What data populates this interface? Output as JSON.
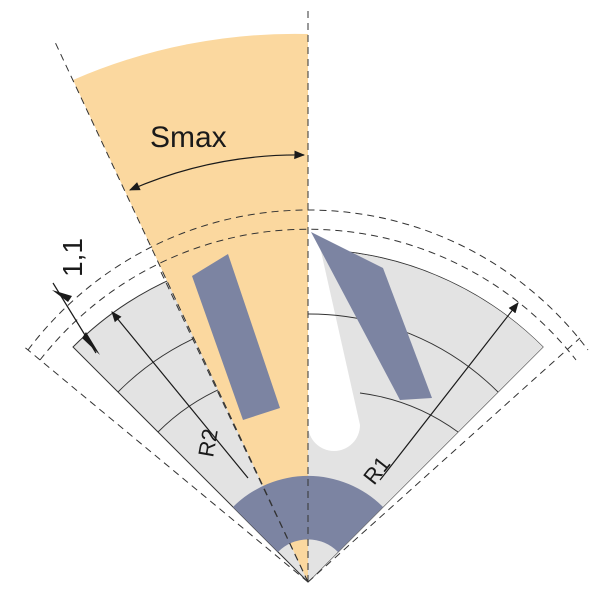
{
  "labels": {
    "smax": "Smax",
    "clearance": "1,1",
    "r1": "R1",
    "r2": "R2"
  },
  "colors": {
    "sector_fill": "#e3e3e3",
    "slot_fill": "#fbd89f",
    "hub_fill": "#7c84a2",
    "jaw_fill": "#7c84a2",
    "line": "#333333"
  }
}
